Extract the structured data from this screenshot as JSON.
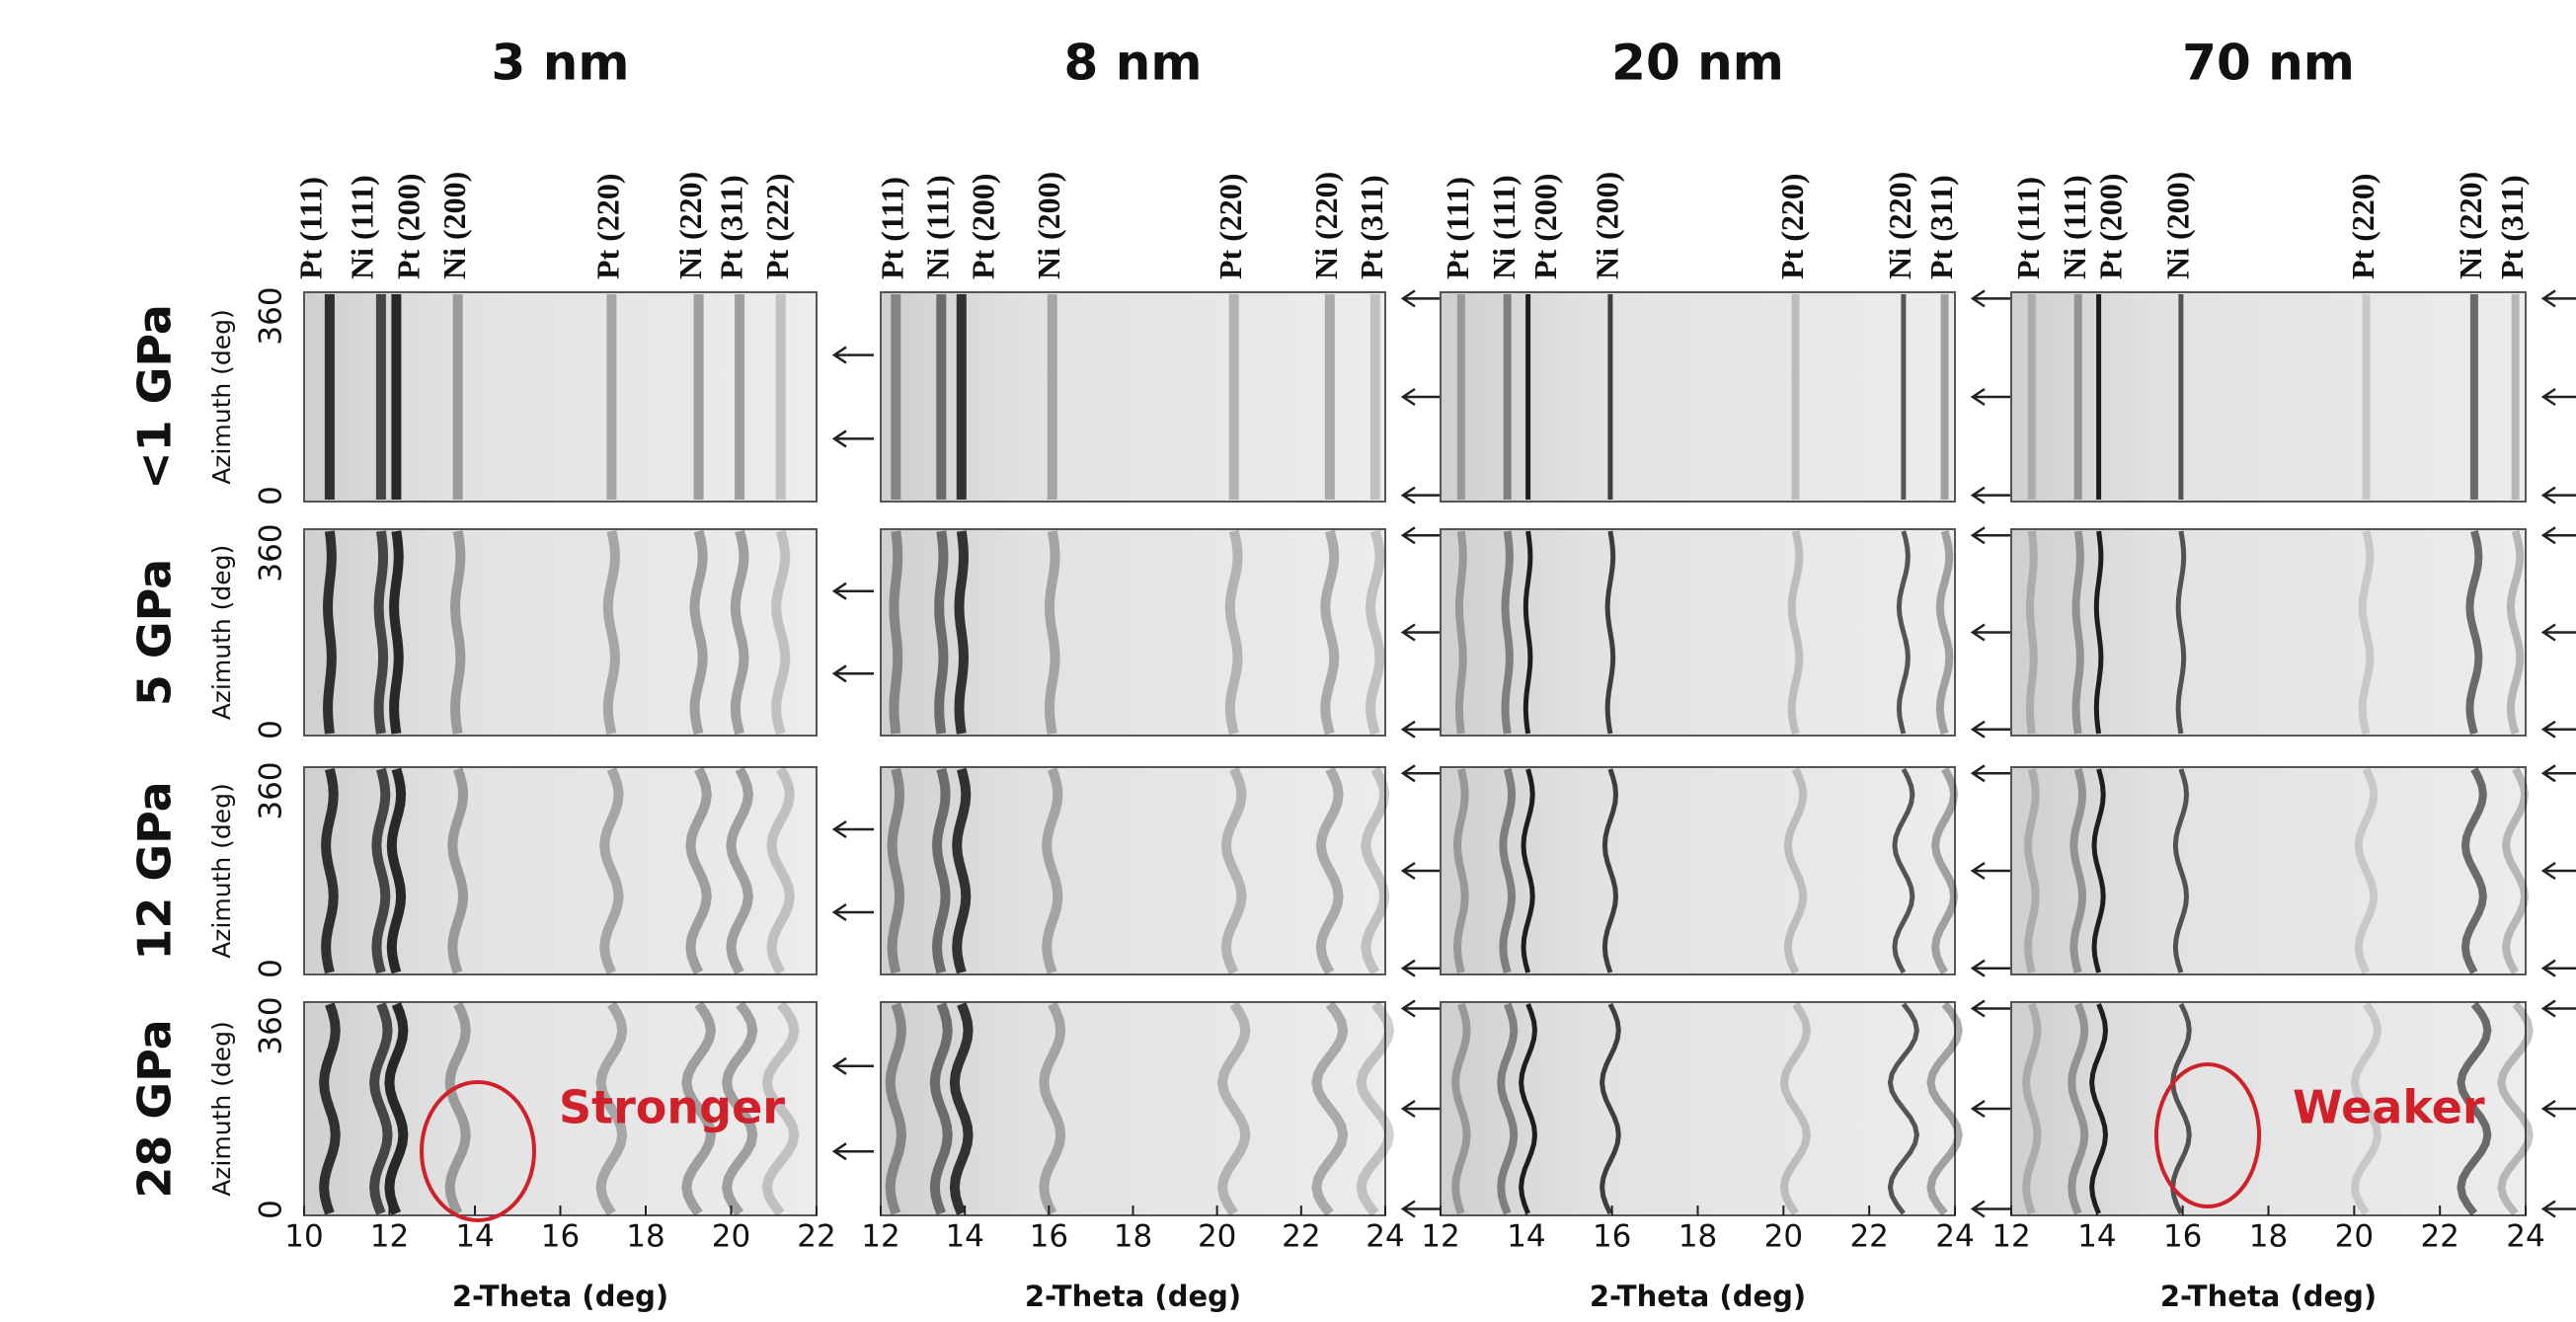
{
  "columns": [
    {
      "title": "3 nm",
      "peaks": [
        "Pt (111)",
        "Ni (111)",
        "Pt (200)",
        "Ni (200)",
        "Pt (220)",
        "Ni (220)",
        "Pt (311)",
        "Pt (222)"
      ],
      "xticks": [
        10,
        12,
        14,
        16,
        18,
        20,
        22
      ],
      "xlabel": "2-Theta (deg)"
    },
    {
      "title": "8 nm",
      "peaks": [
        "Pt (111)",
        "Ni (111)",
        "Pt (200)",
        "Ni (200)",
        "Pt (220)",
        "Ni (220)",
        "Pt (311)"
      ],
      "xticks": [
        12,
        14,
        16,
        18,
        20,
        22,
        24
      ],
      "xlabel": "2-Theta (deg)"
    },
    {
      "title": "20 nm",
      "peaks": [
        "Pt (111)",
        "Ni (111)",
        "Pt (200)",
        "Ni (200)",
        "Pt (220)",
        "Ni (220)",
        "Pt (311)"
      ],
      "xticks": [
        12,
        14,
        16,
        18,
        20,
        22,
        24
      ],
      "xlabel": "2-Theta (deg)"
    },
    {
      "title": "70 nm",
      "peaks": [
        "Pt (111)",
        "Ni (111)",
        "Pt (200)",
        "Ni (200)",
        "Pt (220)",
        "Ni (220)",
        "Pt (311)"
      ],
      "xticks": [
        12,
        14,
        16,
        18,
        20,
        22,
        24
      ],
      "xlabel": "2-Theta (deg)"
    }
  ],
  "rows": [
    {
      "label": "<1 GPa",
      "ylabel": "Azimuth (deg)",
      "yticks": [
        0,
        360
      ]
    },
    {
      "label": "5 GPa",
      "ylabel": "Azimuth (deg)",
      "yticks": [
        0,
        360
      ]
    },
    {
      "label": "12 GPa",
      "ylabel": "Azimuth (deg)",
      "yticks": [
        0,
        360
      ]
    },
    {
      "label": "28 GPa",
      "ylabel": "Azimuth (deg)",
      "yticks": [
        0,
        360
      ]
    }
  ],
  "annotations": [
    "Stronger",
    "Weaker"
  ]
}
